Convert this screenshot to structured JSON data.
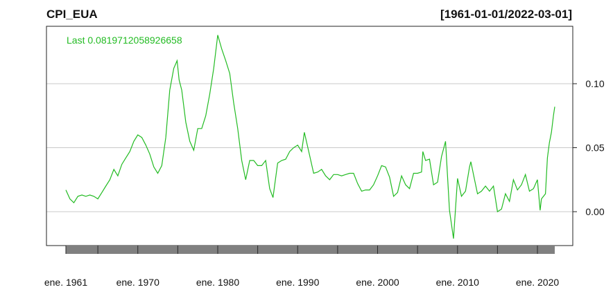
{
  "chart_data": {
    "type": "line",
    "title": "CPI_EUA",
    "date_range_label": "[1961-01-01/2022-03-01]",
    "last_label": "Last 0.0819712058926658",
    "series_color": "#22bb22",
    "grid": true,
    "y_axis_side": "right",
    "ylim": [
      -0.025,
      0.14
    ],
    "y_ticks": [
      {
        "value": 0.0,
        "label": "0.00"
      },
      {
        "value": 0.05,
        "label": "0.05"
      },
      {
        "value": 0.1,
        "label": "0.10"
      }
    ],
    "x_ticks": [
      {
        "year": 1961,
        "label": "ene. 1961"
      },
      {
        "year": 1970,
        "label": "ene. 1970"
      },
      {
        "year": 1980,
        "label": "ene. 1980"
      },
      {
        "year": 1990,
        "label": "ene. 1990"
      },
      {
        "year": 2000,
        "label": "ene. 2000"
      },
      {
        "year": 2010,
        "label": "ene. 2010"
      },
      {
        "year": 2020,
        "label": "ene. 2020"
      }
    ],
    "x_minor_ticks": [
      1961,
      1965,
      1970,
      1975,
      1980,
      1985,
      1990,
      1995,
      2000,
      2005,
      2010,
      2015,
      2020
    ],
    "x_range": [
      "1961-01-01",
      "2022-03-01"
    ],
    "series": [
      {
        "values": [
          [
            "1961-01",
            0.017
          ],
          [
            "1961-07",
            0.01
          ],
          [
            "1962-01",
            0.007
          ],
          [
            "1962-07",
            0.012
          ],
          [
            "1963-01",
            0.013
          ],
          [
            "1963-07",
            0.012
          ],
          [
            "1964-01",
            0.013
          ],
          [
            "1964-07",
            0.012
          ],
          [
            "1965-01",
            0.01
          ],
          [
            "1965-07",
            0.015
          ],
          [
            "1966-01",
            0.02
          ],
          [
            "1966-07",
            0.025
          ],
          [
            "1967-01",
            0.033
          ],
          [
            "1967-07",
            0.028
          ],
          [
            "1968-01",
            0.037
          ],
          [
            "1968-07",
            0.042
          ],
          [
            "1969-01",
            0.047
          ],
          [
            "1969-07",
            0.055
          ],
          [
            "1970-01",
            0.06
          ],
          [
            "1970-07",
            0.058
          ],
          [
            "1971-01",
            0.052
          ],
          [
            "1971-07",
            0.045
          ],
          [
            "1972-01",
            0.035
          ],
          [
            "1972-07",
            0.03
          ],
          [
            "1973-01",
            0.036
          ],
          [
            "1973-07",
            0.058
          ],
          [
            "1974-01",
            0.095
          ],
          [
            "1974-07",
            0.112
          ],
          [
            "1974-12",
            0.118
          ],
          [
            "1975-03",
            0.103
          ],
          [
            "1975-07",
            0.095
          ],
          [
            "1976-01",
            0.07
          ],
          [
            "1976-07",
            0.055
          ],
          [
            "1977-01",
            0.048
          ],
          [
            "1977-07",
            0.065
          ],
          [
            "1978-01",
            0.065
          ],
          [
            "1978-07",
            0.075
          ],
          [
            "1979-01",
            0.092
          ],
          [
            "1979-07",
            0.112
          ],
          [
            "1980-01",
            0.138
          ],
          [
            "1980-07",
            0.127
          ],
          [
            "1981-01",
            0.118
          ],
          [
            "1981-07",
            0.108
          ],
          [
            "1982-01",
            0.085
          ],
          [
            "1982-07",
            0.065
          ],
          [
            "1983-01",
            0.04
          ],
          [
            "1983-07",
            0.025
          ],
          [
            "1984-01",
            0.04
          ],
          [
            "1984-07",
            0.04
          ],
          [
            "1985-01",
            0.036
          ],
          [
            "1985-07",
            0.036
          ],
          [
            "1986-01",
            0.04
          ],
          [
            "1986-07",
            0.018
          ],
          [
            "1986-12",
            0.011
          ],
          [
            "1987-07",
            0.038
          ],
          [
            "1988-01",
            0.04
          ],
          [
            "1988-07",
            0.041
          ],
          [
            "1989-01",
            0.047
          ],
          [
            "1989-07",
            0.05
          ],
          [
            "1990-01",
            0.052
          ],
          [
            "1990-07",
            0.047
          ],
          [
            "1990-11",
            0.062
          ],
          [
            "1991-07",
            0.044
          ],
          [
            "1992-01",
            0.03
          ],
          [
            "1992-07",
            0.031
          ],
          [
            "1993-01",
            0.033
          ],
          [
            "1993-07",
            0.028
          ],
          [
            "1994-01",
            0.025
          ],
          [
            "1994-07",
            0.029
          ],
          [
            "1995-01",
            0.029
          ],
          [
            "1995-07",
            0.028
          ],
          [
            "1996-01",
            0.029
          ],
          [
            "1996-07",
            0.03
          ],
          [
            "1997-01",
            0.03
          ],
          [
            "1997-07",
            0.022
          ],
          [
            "1998-01",
            0.016
          ],
          [
            "1998-07",
            0.017
          ],
          [
            "1999-01",
            0.017
          ],
          [
            "1999-07",
            0.021
          ],
          [
            "2000-01",
            0.028
          ],
          [
            "2000-07",
            0.036
          ],
          [
            "2001-01",
            0.035
          ],
          [
            "2001-07",
            0.027
          ],
          [
            "2002-01",
            0.012
          ],
          [
            "2002-07",
            0.015
          ],
          [
            "2003-01",
            0.028
          ],
          [
            "2003-07",
            0.021
          ],
          [
            "2004-01",
            0.018
          ],
          [
            "2004-07",
            0.03
          ],
          [
            "2005-01",
            0.03
          ],
          [
            "2005-07",
            0.031
          ],
          [
            "2005-09",
            0.047
          ],
          [
            "2006-01",
            0.04
          ],
          [
            "2006-07",
            0.041
          ],
          [
            "2007-01",
            0.021
          ],
          [
            "2007-07",
            0.023
          ],
          [
            "2008-01",
            0.043
          ],
          [
            "2008-07",
            0.055
          ],
          [
            "2009-01",
            0.001
          ],
          [
            "2009-07",
            -0.021
          ],
          [
            "2010-01",
            0.026
          ],
          [
            "2010-07",
            0.012
          ],
          [
            "2011-01",
            0.016
          ],
          [
            "2011-07",
            0.035
          ],
          [
            "2011-09",
            0.039
          ],
          [
            "2012-01",
            0.029
          ],
          [
            "2012-07",
            0.014
          ],
          [
            "2013-01",
            0.016
          ],
          [
            "2013-07",
            0.02
          ],
          [
            "2014-01",
            0.016
          ],
          [
            "2014-07",
            0.02
          ],
          [
            "2015-01",
            0.0
          ],
          [
            "2015-07",
            0.002
          ],
          [
            "2016-01",
            0.014
          ],
          [
            "2016-07",
            0.008
          ],
          [
            "2017-01",
            0.025
          ],
          [
            "2017-07",
            0.017
          ],
          [
            "2018-01",
            0.021
          ],
          [
            "2018-07",
            0.029
          ],
          [
            "2019-01",
            0.016
          ],
          [
            "2019-07",
            0.018
          ],
          [
            "2020-01",
            0.025
          ],
          [
            "2020-05",
            0.001
          ],
          [
            "2020-07",
            0.01
          ],
          [
            "2021-01",
            0.014
          ],
          [
            "2021-04",
            0.042
          ],
          [
            "2021-07",
            0.054
          ],
          [
            "2021-10",
            0.062
          ],
          [
            "2022-01",
            0.075
          ],
          [
            "2022-03",
            0.082
          ]
        ]
      }
    ]
  }
}
